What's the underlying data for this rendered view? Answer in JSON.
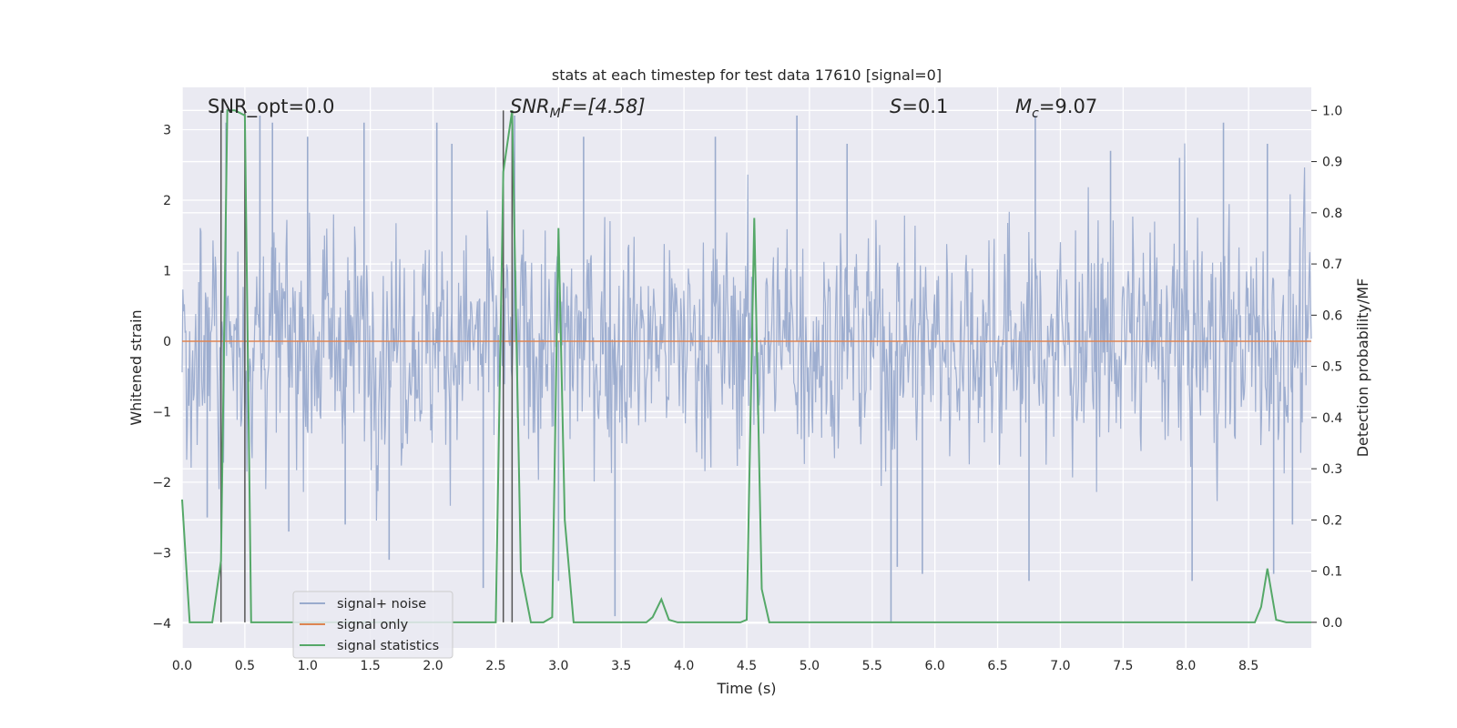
{
  "chart_data": {
    "type": "line",
    "title": "stats at each timestep for test data 17610 [signal=0]",
    "xlabel": "Time (s)",
    "ylabel_left": "Whitened strain",
    "ylabel_right": "Detection probability/MF",
    "xlim": [
      0.0,
      9.0
    ],
    "ylim_left": [
      -4.35,
      3.6
    ],
    "ylim_right": [
      -0.05,
      1.045
    ],
    "x_ticks": [
      "0.0",
      "0.5",
      "1.0",
      "1.5",
      "2.0",
      "2.5",
      "3.0",
      "3.5",
      "4.0",
      "4.5",
      "5.0",
      "5.5",
      "6.0",
      "6.5",
      "7.0",
      "7.5",
      "8.0",
      "8.5"
    ],
    "y_ticks_left": [
      "3",
      "2",
      "1",
      "0",
      "−1",
      "−2",
      "−3",
      "−4"
    ],
    "y_ticks_right": [
      "1.0",
      "0.9",
      "0.8",
      "0.7",
      "0.6",
      "0.5",
      "0.4",
      "0.3",
      "0.2",
      "0.1",
      "0.0"
    ],
    "grid": true,
    "legend_position": "lower-left",
    "annotations": {
      "snr_opt": "SNR_opt=0.0",
      "snr_mf_main": "SNR",
      "snr_mf_sub": "M",
      "snr_mf_rest": "F=[4.58]",
      "s_var": "S",
      "s_val": "=0.1",
      "mc_var": "M",
      "mc_sub": "c",
      "mc_val": "=9.07"
    },
    "vertical_markers": [
      0.31,
      0.5,
      2.56,
      2.63
    ],
    "series": [
      {
        "name": "signal+ noise",
        "color": "#9aabcd",
        "description": "whitened noise strain, roughly within [-4, 3.2]",
        "spike_peaks": [
          [
            0.2,
            -2.5
          ],
          [
            0.85,
            -2.7
          ],
          [
            1.3,
            -2.6
          ],
          [
            1.65,
            -3.1
          ],
          [
            2.4,
            -3.5
          ],
          [
            3.0,
            -3.4
          ],
          [
            3.45,
            -3.9
          ],
          [
            5.65,
            -4.0
          ],
          [
            5.7,
            -3.2
          ],
          [
            5.9,
            -3.3
          ],
          [
            6.75,
            -3.4
          ],
          [
            8.05,
            -3.4
          ],
          [
            8.7,
            -3.3
          ],
          [
            8.85,
            -2.6
          ],
          [
            0.35,
            3.1
          ],
          [
            0.62,
            3.2
          ],
          [
            0.72,
            3.1
          ],
          [
            1.0,
            2.9
          ],
          [
            1.45,
            3.1
          ],
          [
            2.03,
            3.1
          ],
          [
            2.15,
            2.8
          ],
          [
            2.65,
            3.2
          ],
          [
            3.2,
            2.9
          ],
          [
            4.25,
            2.9
          ],
          [
            4.9,
            3.2
          ],
          [
            5.3,
            2.8
          ],
          [
            6.8,
            3.2
          ],
          [
            7.4,
            2.7
          ],
          [
            7.95,
            2.6
          ],
          [
            8.3,
            3.1
          ],
          [
            8.65,
            2.8
          ]
        ]
      },
      {
        "name": "signal only",
        "color": "#dd8452",
        "values_constant": 0.0
      },
      {
        "name": "signal statistics",
        "color": "#55a868",
        "axis": "right",
        "x": [
          0.0,
          0.06,
          0.12,
          0.18,
          0.24,
          0.31,
          0.36,
          0.42,
          0.5,
          0.55,
          0.62,
          0.9,
          1.2,
          1.5,
          1.8,
          2.1,
          2.4,
          2.5,
          2.56,
          2.63,
          2.7,
          2.78,
          2.88,
          2.95,
          3.0,
          3.05,
          3.12,
          3.4,
          3.7,
          3.75,
          3.82,
          3.88,
          3.95,
          4.2,
          4.45,
          4.5,
          4.56,
          4.62,
          4.68,
          5.0,
          6.0,
          7.0,
          8.0,
          8.55,
          8.6,
          8.65,
          8.72,
          8.8,
          9.0
        ],
        "y": [
          0.24,
          0.0,
          0.0,
          0.0,
          0.0,
          0.12,
          1.0,
          1.0,
          0.99,
          0.0,
          0.0,
          0.0,
          0.0,
          0.0,
          0.0,
          0.0,
          0.0,
          0.0,
          0.88,
          1.0,
          0.1,
          0.0,
          0.0,
          0.01,
          0.77,
          0.2,
          0.0,
          0.0,
          0.0,
          0.01,
          0.045,
          0.005,
          0.0,
          0.0,
          0.0,
          0.005,
          0.79,
          0.065,
          0.0,
          0.0,
          0.0,
          0.0,
          0.0,
          0.0,
          0.03,
          0.105,
          0.005,
          0.0,
          0.0
        ]
      }
    ]
  },
  "legend": {
    "items": [
      "signal+ noise",
      "signal only",
      "signal statistics"
    ]
  }
}
